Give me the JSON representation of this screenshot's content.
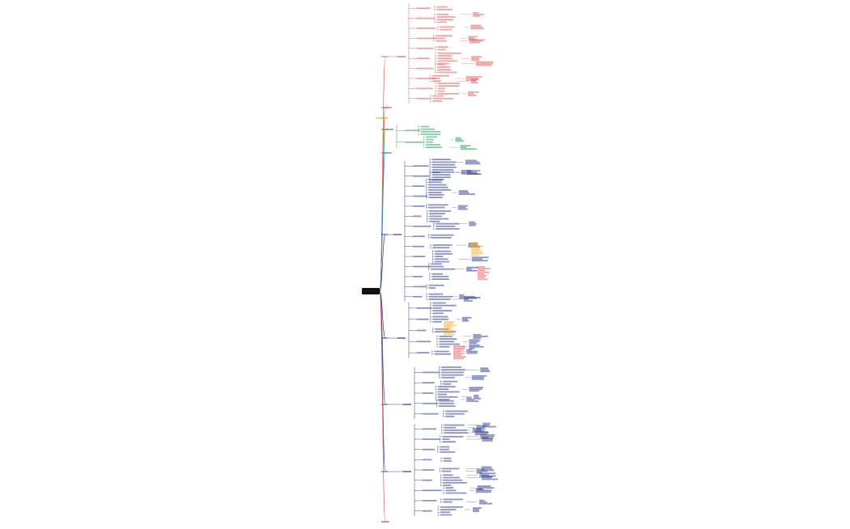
{
  "diagram": {
    "type": "mind-map",
    "root": {
      "label": ""
    },
    "branch_colors": [
      "#e05a5a",
      "#e05a5a",
      "#f0a030",
      "#2a9d5c",
      "#4a7be0",
      "#2e3a8c",
      "#2e3a8c",
      "#2e3a8c",
      "#2e3a8c",
      "#e05a5a"
    ],
    "highlight_colors": [
      "#f5a623",
      "#e05a5a"
    ],
    "note": ""
  }
}
